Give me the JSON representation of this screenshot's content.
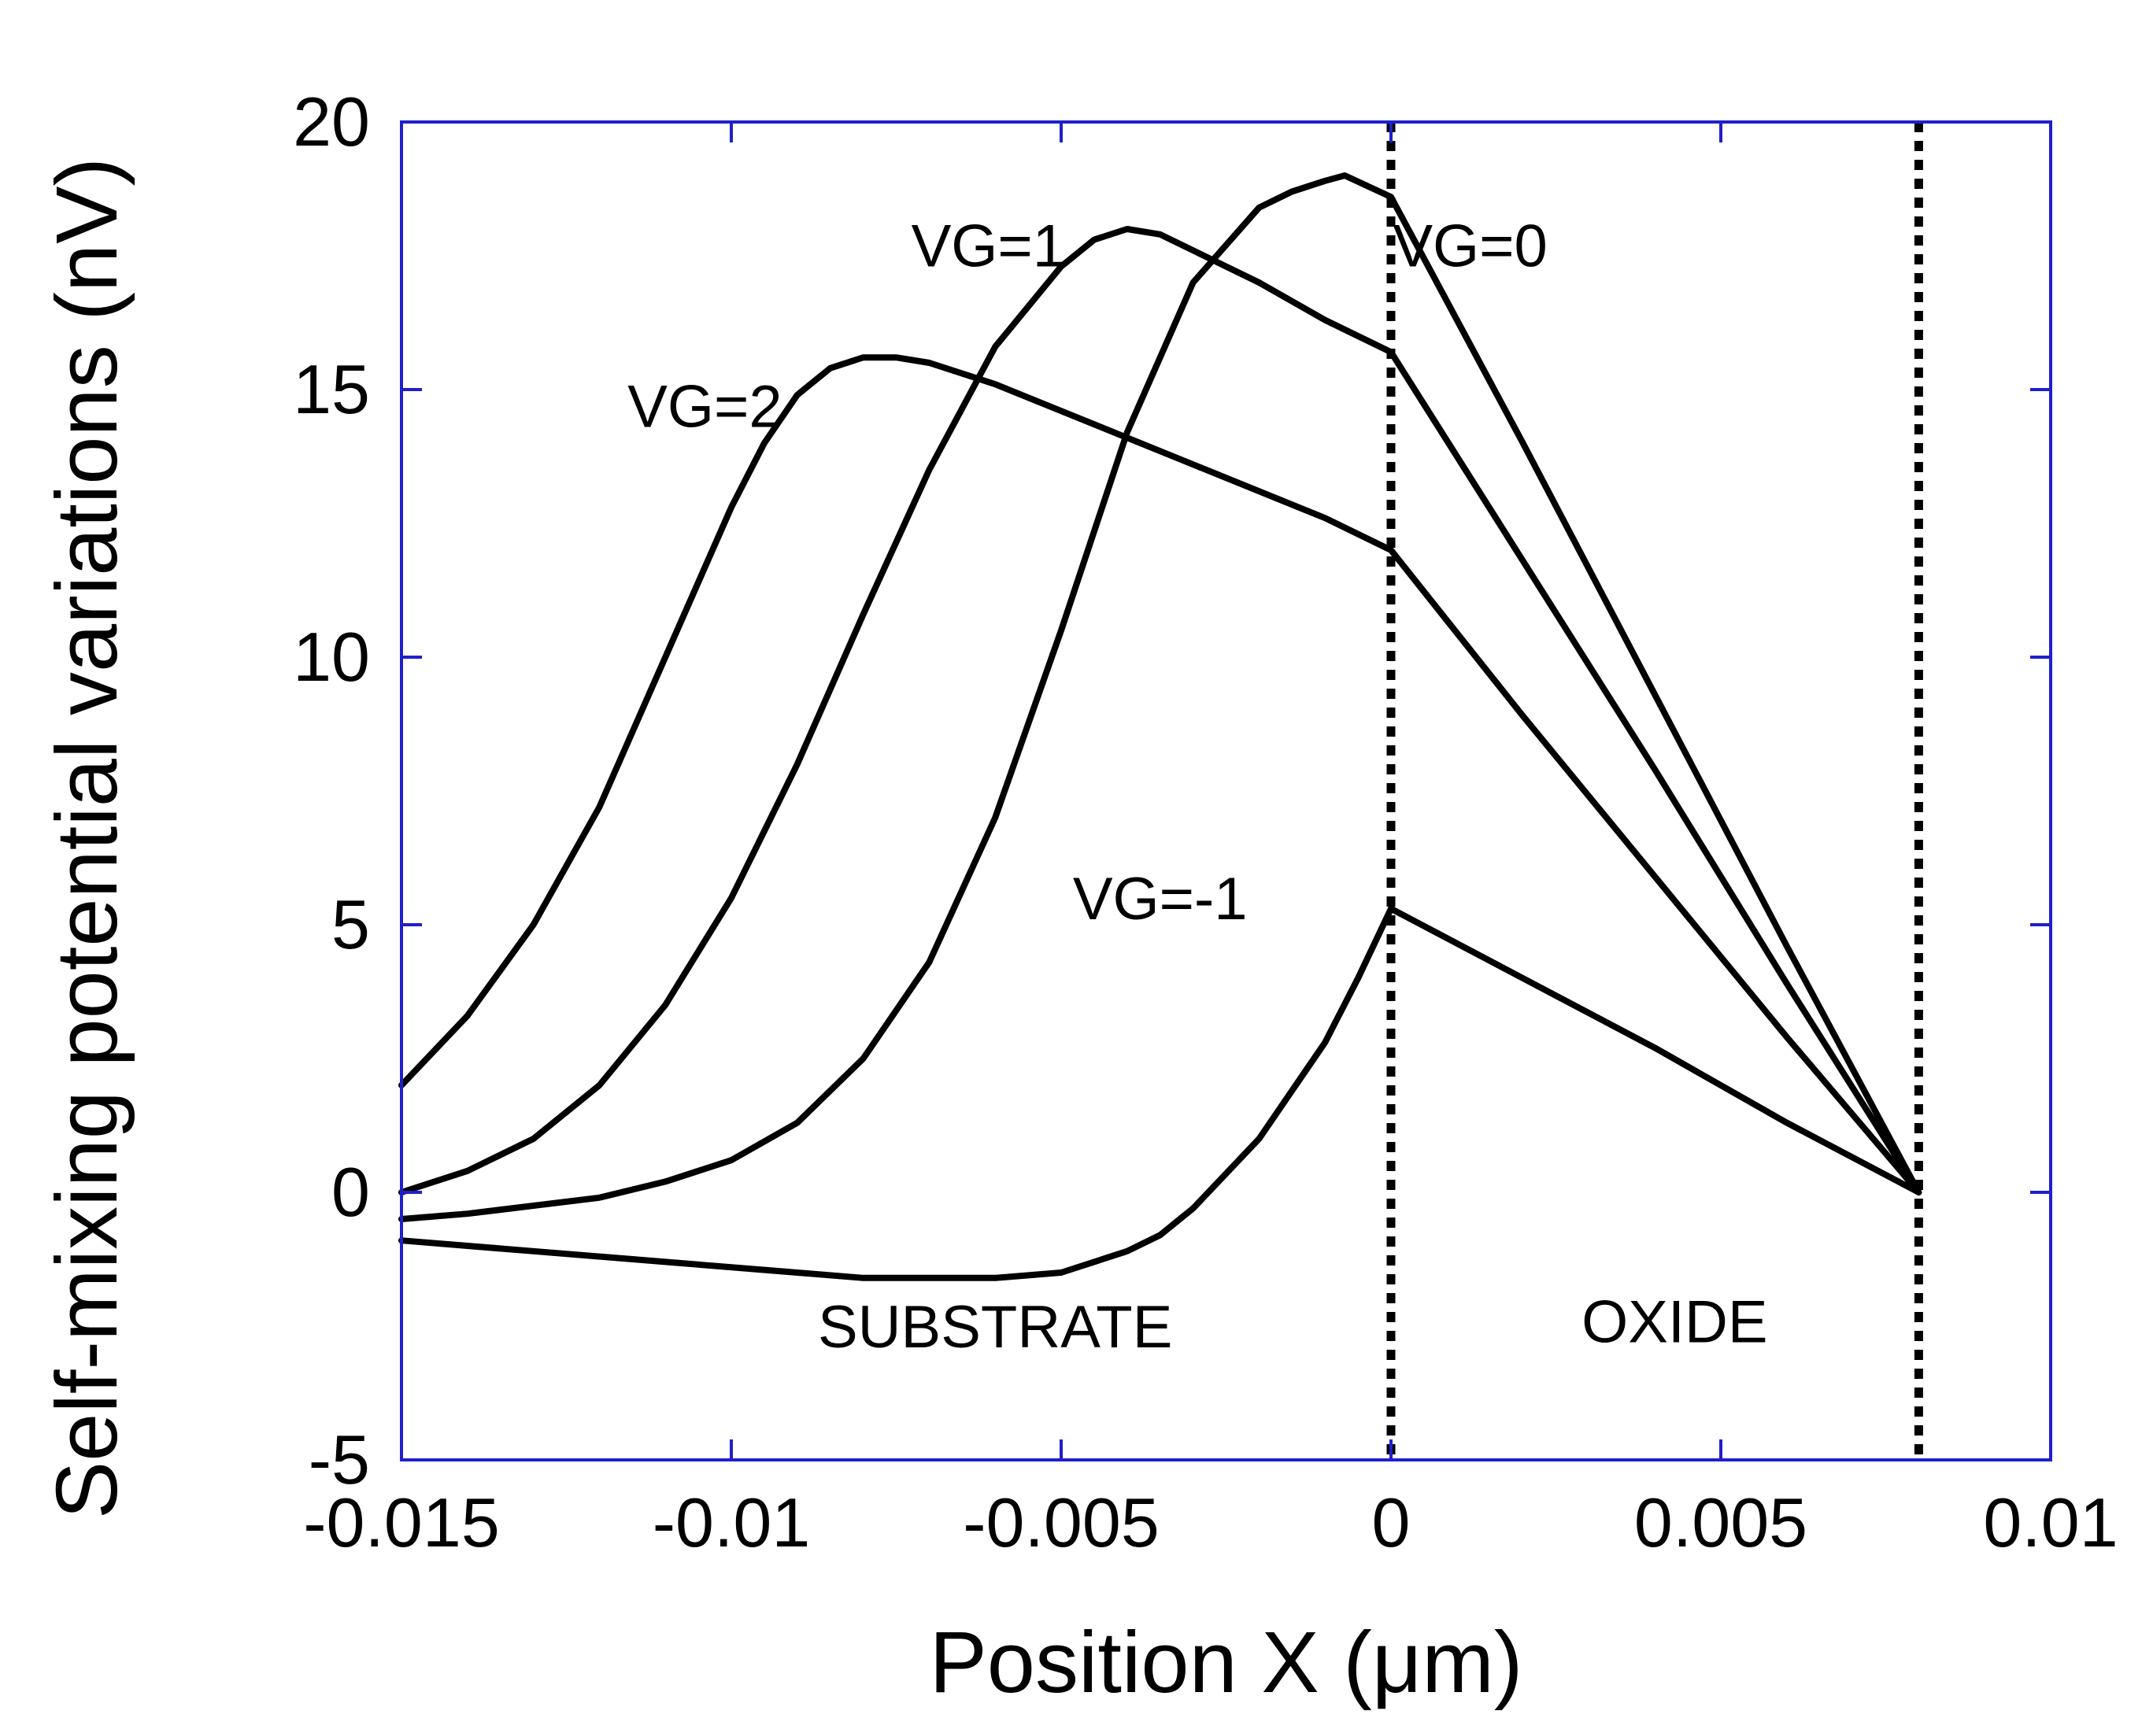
{
  "chart_data": {
    "type": "line",
    "title": "",
    "xlabel": "Position X  (μm)",
    "ylabel": "Self-mixing potential variations (nV)",
    "xlim": [
      -0.015,
      0.01
    ],
    "ylim": [
      -5,
      20
    ],
    "grid": false,
    "axis_color": "#1f1fcc",
    "line_color": "#000000",
    "x_ticks": [
      -0.015,
      -0.01,
      -0.005,
      0,
      0.005,
      0.01
    ],
    "x_tick_labels": [
      "-0.015",
      "-0.01",
      "-0.005",
      "0",
      "0.005",
      "0.01"
    ],
    "y_ticks": [
      -5,
      0,
      5,
      10,
      15,
      20
    ],
    "y_tick_labels": [
      "-5",
      "0",
      "5",
      "10",
      "15",
      "20"
    ],
    "boundaries": [
      0,
      0.008
    ],
    "regions": [
      {
        "label": "SUBSTRATE",
        "x": -0.006,
        "y": -2.9
      },
      {
        "label": "OXIDE",
        "x": 0.0043,
        "y": -2.8
      }
    ],
    "series": [
      {
        "name": "VG=2",
        "label": "VG=2",
        "label_pos": {
          "x": -0.0104,
          "y": 14.3
        },
        "x": [
          -0.015,
          -0.014,
          -0.013,
          -0.012,
          -0.011,
          -0.01,
          -0.0095,
          -0.009,
          -0.0085,
          -0.008,
          -0.0075,
          -0.007,
          -0.006,
          -0.005,
          -0.004,
          -0.003,
          -0.002,
          -0.001,
          0,
          0.002,
          0.004,
          0.006,
          0.008
        ],
        "y": [
          2.0,
          3.3,
          5.0,
          7.2,
          10.0,
          12.8,
          14.0,
          14.9,
          15.4,
          15.6,
          15.6,
          15.5,
          15.1,
          14.6,
          14.1,
          13.6,
          13.1,
          12.6,
          12.0,
          8.9,
          5.9,
          2.9,
          0.0
        ]
      },
      {
        "name": "VG=1",
        "label": "VG=1",
        "label_pos": {
          "x": -0.0061,
          "y": 17.3
        },
        "x": [
          -0.015,
          -0.014,
          -0.013,
          -0.012,
          -0.011,
          -0.01,
          -0.009,
          -0.008,
          -0.007,
          -0.006,
          -0.005,
          -0.0045,
          -0.004,
          -0.0035,
          -0.003,
          -0.002,
          -0.001,
          0,
          0.002,
          0.004,
          0.006,
          0.008
        ],
        "y": [
          0.0,
          0.4,
          1.0,
          2.0,
          3.5,
          5.5,
          8.0,
          10.8,
          13.5,
          15.8,
          17.3,
          17.8,
          18.0,
          17.9,
          17.6,
          17.0,
          16.3,
          15.7,
          11.8,
          7.9,
          3.9,
          0.0
        ]
      },
      {
        "name": "VG=0",
        "label": "VG=0",
        "label_pos": {
          "x": 0.0012,
          "y": 17.3
        },
        "x": [
          -0.015,
          -0.014,
          -0.012,
          -0.011,
          -0.01,
          -0.009,
          -0.008,
          -0.007,
          -0.006,
          -0.005,
          -0.004,
          -0.003,
          -0.002,
          -0.0015,
          -0.001,
          -0.0007,
          0,
          0.002,
          0.004,
          0.006,
          0.008
        ],
        "y": [
          -0.5,
          -0.4,
          -0.1,
          0.2,
          0.6,
          1.3,
          2.5,
          4.3,
          7.0,
          10.5,
          14.2,
          17.0,
          18.4,
          18.7,
          18.9,
          19.0,
          18.6,
          14.0,
          9.3,
          4.6,
          0.0
        ]
      },
      {
        "name": "VG=-1",
        "label": "VG=-1",
        "label_pos": {
          "x": -0.0035,
          "y": 5.1
        },
        "x": [
          -0.015,
          -0.013,
          -0.011,
          -0.009,
          -0.008,
          -0.007,
          -0.006,
          -0.005,
          -0.004,
          -0.0035,
          -0.003,
          -0.002,
          -0.001,
          -0.0005,
          0,
          0.002,
          0.004,
          0.006,
          0.008
        ],
        "y": [
          -0.9,
          -1.1,
          -1.3,
          -1.5,
          -1.6,
          -1.6,
          -1.6,
          -1.5,
          -1.1,
          -0.8,
          -0.3,
          1.0,
          2.8,
          4.0,
          5.3,
          4.0,
          2.7,
          1.3,
          0.0
        ]
      }
    ]
  }
}
